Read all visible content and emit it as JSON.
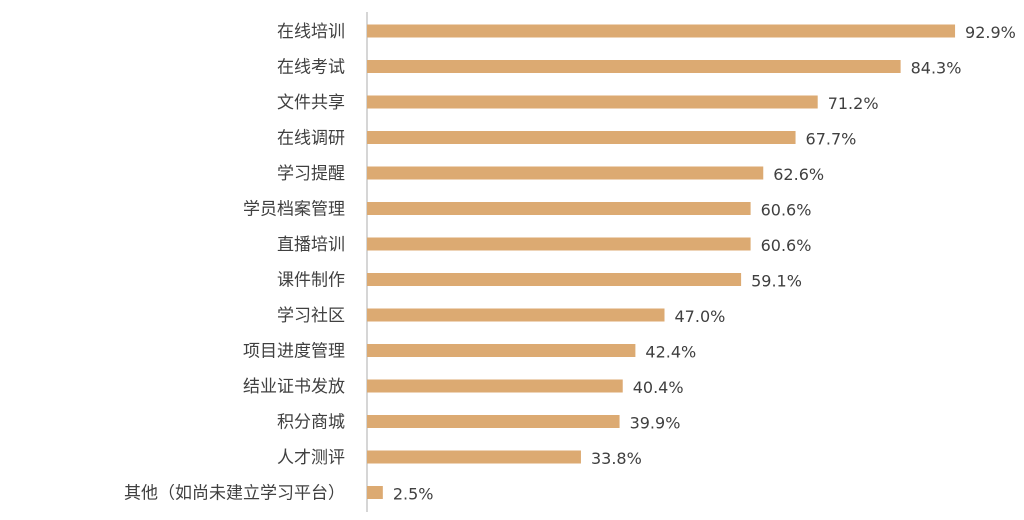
{
  "chart_data": {
    "type": "bar",
    "orientation": "horizontal",
    "categories": [
      "在线培训",
      "在线考试",
      "文件共享",
      "在线调研",
      "学习提醒",
      "学员档案管理",
      "直播培训",
      "课件制作",
      "学习社区",
      "项目进度管理",
      "结业证书发放",
      "积分商城",
      "人才测评",
      "其他（如尚未建立学习平台）"
    ],
    "values": [
      92.9,
      84.3,
      71.2,
      67.7,
      62.6,
      60.6,
      60.6,
      59.1,
      47.0,
      42.4,
      40.4,
      39.9,
      33.8,
      2.5
    ],
    "value_labels": [
      "92.9%",
      "84.3%",
      "71.2%",
      "67.7%",
      "62.6%",
      "60.6%",
      "60.6%",
      "59.1%",
      "47.0%",
      "42.4%",
      "40.4%",
      "39.9%",
      "33.8%",
      "2.5%"
    ],
    "xlim": [
      0,
      100
    ],
    "title": "",
    "xlabel": "",
    "ylabel": "",
    "grid": false,
    "legend": "none",
    "colors": {
      "bar": "#dcaa72",
      "axis": "#c9c9c9",
      "text": "#404040"
    }
  }
}
